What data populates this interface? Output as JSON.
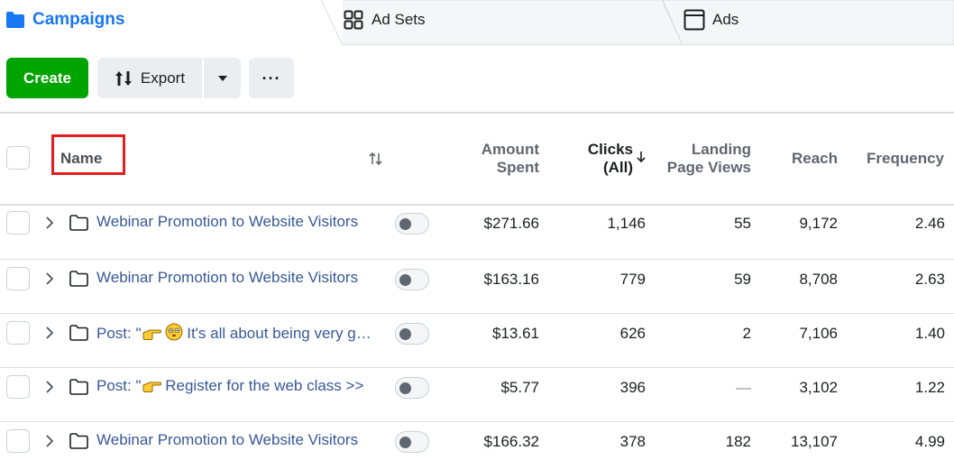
{
  "tabs": {
    "campaigns": "Campaigns",
    "ad_sets": "Ad Sets",
    "ads": "Ads"
  },
  "toolbar": {
    "create": "Create",
    "export": "Export",
    "more": "···"
  },
  "colors": {
    "accent_blue": "#1877f2",
    "create_green": "#00a400",
    "link_blue": "#385898",
    "highlight_red": "#e02020"
  },
  "table": {
    "headers": {
      "name": "Name",
      "amount_spent": [
        "Amount",
        "Spent"
      ],
      "clicks": [
        "Clicks",
        "(All)"
      ],
      "landing_page_views": [
        "Landing",
        "Page Views"
      ],
      "reach": "Reach",
      "frequency": "Frequency"
    },
    "rows": [
      {
        "name": "Webinar Promotion to Website Visitors",
        "amount_spent": "$271.66",
        "clicks": "1,146",
        "landing_page_views": "55",
        "reach": "9,172",
        "frequency": "2.46"
      },
      {
        "name": "Webinar Promotion to Website Visitors",
        "amount_spent": "$163.16",
        "clicks": "779",
        "landing_page_views": "59",
        "reach": "8,708",
        "frequency": "2.63"
      },
      {
        "name_prefix": "Post: \"",
        "name_rest": " It's all about being very good",
        "amount_spent": "$13.61",
        "clicks": "626",
        "landing_page_views": "2",
        "reach": "7,106",
        "frequency": "1.40"
      },
      {
        "name_prefix": "Post: \"",
        "name_rest": " Register for the web class >>",
        "amount_spent": "$5.77",
        "clicks": "396",
        "landing_page_views": "—",
        "reach": "3,102",
        "frequency": "1.22"
      },
      {
        "name": "Webinar Promotion to Website Visitors",
        "amount_spent": "$166.32",
        "clicks": "378",
        "landing_page_views": "182",
        "reach": "13,107",
        "frequency": "4.99"
      }
    ]
  }
}
